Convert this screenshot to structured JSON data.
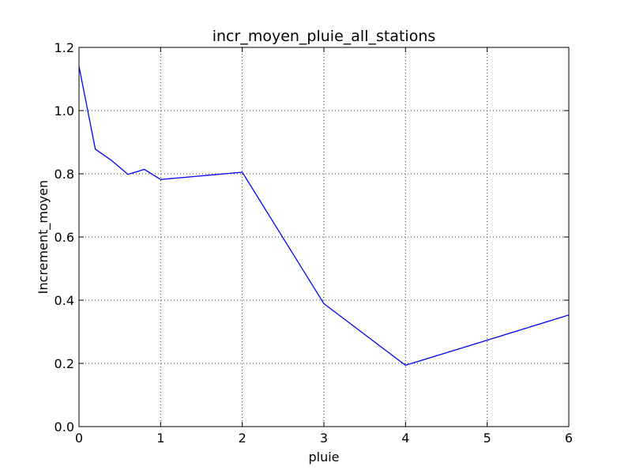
{
  "chart_data": {
    "type": "line",
    "title": "incr_moyen_pluie_all_stations",
    "xlabel": "pluie",
    "ylabel": "Increment_moyen",
    "xlim": [
      0,
      6
    ],
    "ylim": [
      0.0,
      1.2
    ],
    "xticks": [
      "0",
      "1",
      "2",
      "3",
      "4",
      "5",
      "6"
    ],
    "yticks": [
      "0.0",
      "0.2",
      "0.4",
      "0.6",
      "0.8",
      "1.0",
      "1.2"
    ],
    "grid": true,
    "series": [
      {
        "color": "#0000ff",
        "x": [
          0.0,
          0.2,
          0.4,
          0.6,
          0.8,
          1.0,
          2.0,
          3.0,
          4.0,
          6.0
        ],
        "y": [
          1.14,
          0.878,
          0.842,
          0.798,
          0.814,
          0.782,
          0.805,
          0.389,
          0.194,
          0.353
        ]
      }
    ]
  }
}
